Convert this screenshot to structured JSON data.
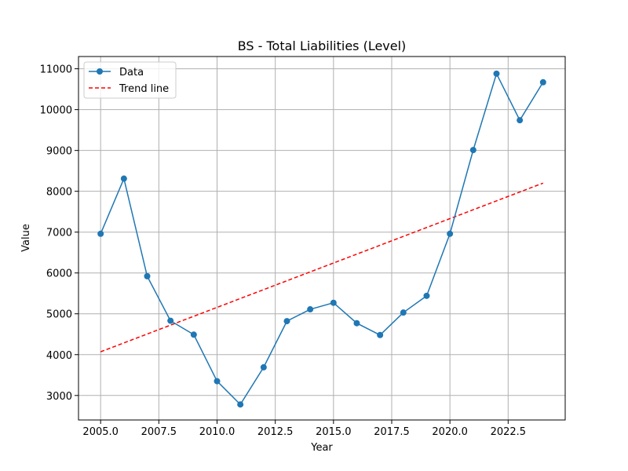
{
  "chart_data": {
    "type": "line",
    "title": "BS - Total Liabilities (Level)",
    "xlabel": "Year",
    "ylabel": "Value",
    "xlim": [
      2004.05,
      2024.95
    ],
    "ylim": [
      2400,
      11300
    ],
    "x_ticks": [
      2005.0,
      2007.5,
      2010.0,
      2012.5,
      2015.0,
      2017.5,
      2020.0,
      2022.5
    ],
    "x_tick_labels": [
      "2005.0",
      "2007.5",
      "2010.0",
      "2012.5",
      "2015.0",
      "2017.5",
      "2020.0",
      "2022.5"
    ],
    "y_ticks": [
      3000,
      4000,
      5000,
      6000,
      7000,
      8000,
      9000,
      10000,
      11000
    ],
    "y_tick_labels": [
      "3000",
      "4000",
      "5000",
      "6000",
      "7000",
      "8000",
      "9000",
      "10000",
      "11000"
    ],
    "grid": true,
    "legend_position": "top-left",
    "series": [
      {
        "name": "Data",
        "style": "solid-with-markers",
        "color": "#1f77b4",
        "x": [
          2005,
          2006,
          2007,
          2008,
          2009,
          2010,
          2011,
          2012,
          2013,
          2014,
          2015,
          2016,
          2017,
          2018,
          2019,
          2020,
          2021,
          2022,
          2023,
          2024
        ],
        "y": [
          6960,
          8310,
          5920,
          4830,
          4490,
          3350,
          2780,
          3690,
          4820,
          5110,
          5270,
          4770,
          4480,
          5030,
          5440,
          6960,
          9010,
          10880,
          9740,
          10670
        ]
      },
      {
        "name": "Trend line",
        "style": "dashed",
        "color": "#ff0000",
        "x": [
          2005,
          2024
        ],
        "y": [
          4070,
          8200
        ]
      }
    ]
  }
}
